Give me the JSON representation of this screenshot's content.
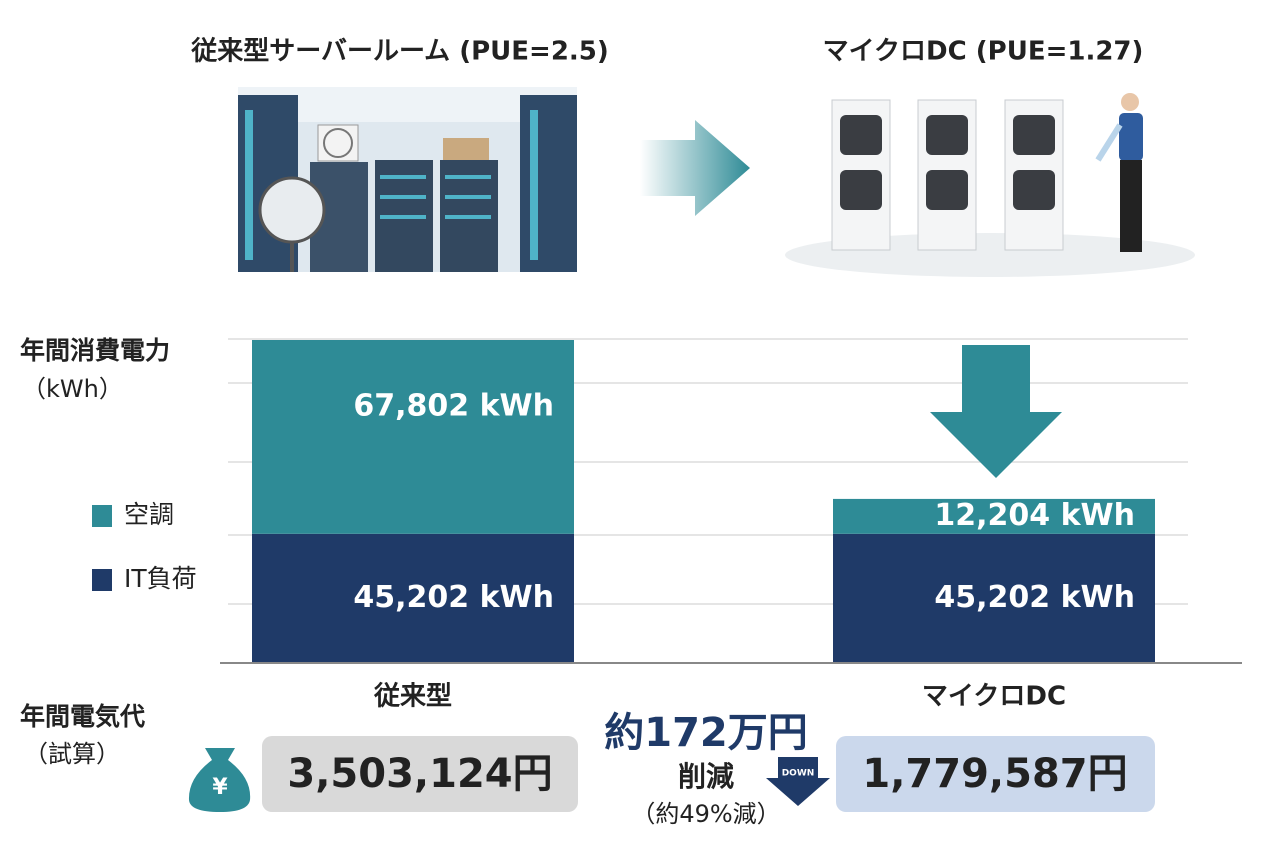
{
  "chart_data": {
    "type": "stacked-bar",
    "titles": [
      "従来型サーバールーム (PUE=2.5)",
      "マイクロDC (PUE=1.27)"
    ],
    "y_label": [
      "年間消費電力",
      "（kWh）"
    ],
    "categories": [
      "従来型",
      "マイクロDC"
    ],
    "series": [
      {
        "name": "IT負荷",
        "color": "#1f3a68",
        "values": [
          45202,
          45202
        ],
        "value_labels": [
          "45,202 kWh",
          "45,202 kWh"
        ]
      },
      {
        "name": "空調",
        "color": "#2e8b96",
        "values": [
          67802,
          12204
        ],
        "value_labels": [
          "67,802 kWh",
          "12,204 kWh"
        ]
      }
    ],
    "ylim": [
      0,
      120000
    ],
    "grid": true
  },
  "cost": {
    "label": [
      "年間電気代",
      "（試算）"
    ],
    "items": [
      "3,503,124円",
      "1,779,587円"
    ],
    "saving": {
      "amount": "約172万円",
      "text": "削減",
      "note": "（約49%減）",
      "badge": "DOWN"
    }
  }
}
